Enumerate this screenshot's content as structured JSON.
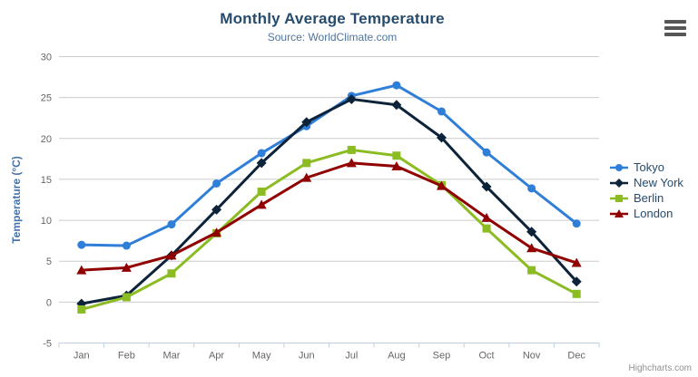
{
  "header": {
    "title": "Monthly Average Temperature",
    "subtitle": "Source: WorldClimate.com",
    "export_menu_icon": "hamburger-icon"
  },
  "credits": "Highcharts.com",
  "colors": {
    "title": "#274b6d",
    "subtitle": "#4d759e",
    "axis_labels": "#666666",
    "y_axis_title": "#4572a7",
    "grid_line": "#cccccc",
    "x_axis_line": "#c0d0e0",
    "legend_text": "#274b6d",
    "credits_text": "#909090"
  },
  "chart_data": {
    "type": "line",
    "title": "Monthly Average Temperature",
    "subtitle": "Source: WorldClimate.com",
    "xlabel": "",
    "ylabel": "Temperature (°C)",
    "categories": [
      "Jan",
      "Feb",
      "Mar",
      "Apr",
      "May",
      "Jun",
      "Jul",
      "Aug",
      "Sep",
      "Oct",
      "Nov",
      "Dec"
    ],
    "ylim": [
      -5,
      30
    ],
    "ytick_step": 5,
    "ytick_labels": [
      "-5",
      "0",
      "5",
      "10",
      "15",
      "20",
      "25",
      "30"
    ],
    "grid": true,
    "legend_position": "right-middle",
    "series": [
      {
        "name": "Tokyo",
        "color": "#2f7ed8",
        "marker": "circle",
        "values": [
          7.0,
          6.9,
          9.5,
          14.5,
          18.2,
          21.5,
          25.2,
          26.5,
          23.3,
          18.3,
          13.9,
          9.6
        ]
      },
      {
        "name": "New York",
        "color": "#0d233a",
        "marker": "diamond",
        "values": [
          -0.2,
          0.8,
          5.7,
          11.3,
          17.0,
          22.0,
          24.8,
          24.1,
          20.1,
          14.1,
          8.6,
          2.5
        ]
      },
      {
        "name": "Berlin",
        "color": "#8bbc21",
        "marker": "square",
        "values": [
          -0.9,
          0.6,
          3.5,
          8.4,
          13.5,
          17.0,
          18.6,
          17.9,
          14.3,
          9.0,
          3.9,
          1.0
        ]
      },
      {
        "name": "London",
        "color": "#910000",
        "marker": "triangle",
        "values": [
          3.9,
          4.2,
          5.7,
          8.5,
          11.9,
          15.2,
          17.0,
          16.6,
          14.2,
          10.3,
          6.6,
          4.8
        ]
      }
    ]
  }
}
